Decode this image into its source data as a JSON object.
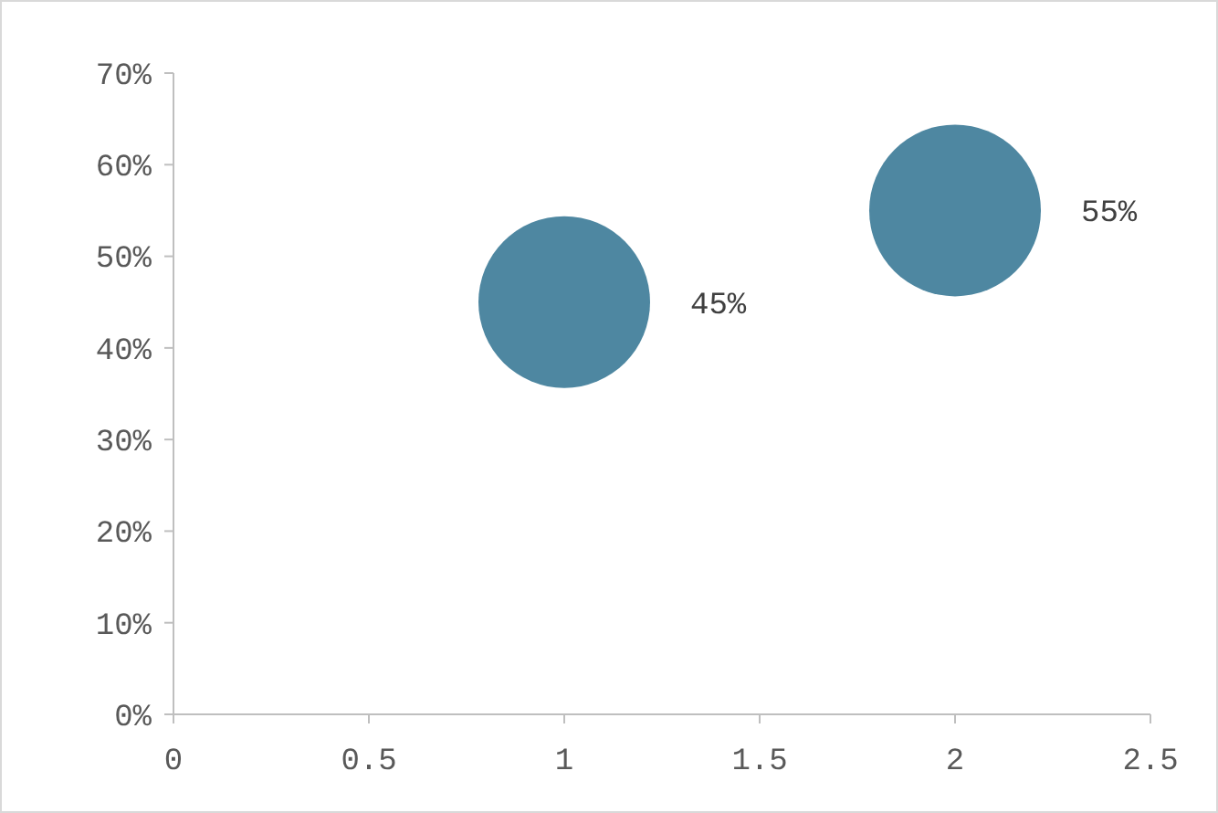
{
  "chart_data": {
    "type": "bubble",
    "x": [
      1,
      2
    ],
    "values": [
      45,
      55
    ],
    "sizes": [
      1,
      1
    ],
    "color": "#4e87a1",
    "value_labels": [
      "45%",
      "55%"
    ],
    "xlim": [
      0,
      2.5
    ],
    "xticks": [
      0,
      {
        "value": 0.5,
        "label": "0.5"
      },
      1,
      {
        "value": 1.5,
        "label": "1.5"
      },
      2,
      {
        "value": 2.5,
        "label": "2.5"
      }
    ],
    "ylim": [
      0,
      70
    ],
    "yticks": [
      {
        "value": 0,
        "label": "0%"
      },
      {
        "value": 10,
        "label": "10%"
      },
      {
        "value": 20,
        "label": "20%"
      },
      {
        "value": 30,
        "label": "30%"
      },
      {
        "value": 40,
        "label": "40%"
      },
      {
        "value": 50,
        "label": "50%"
      },
      {
        "value": 60,
        "label": "60%"
      },
      {
        "value": 70,
        "label": "70%"
      }
    ],
    "grid": false
  }
}
